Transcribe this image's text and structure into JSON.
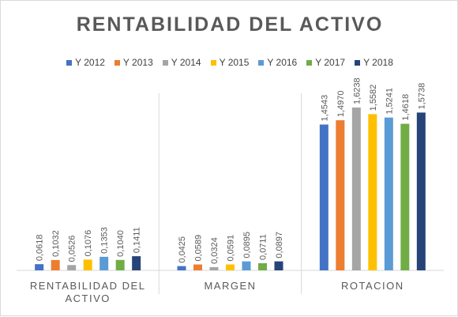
{
  "chart_data": {
    "type": "bar",
    "title": "RENTABILIDAD DEL ACTIVO",
    "categories": [
      "RENTABILIDAD DEL ACTIVO",
      "MARGEN",
      "ROTACION"
    ],
    "category_lines": [
      [
        "RENTABILIDAD DEL",
        "ACTIVO"
      ],
      [
        "MARGEN"
      ],
      [
        "ROTACION"
      ]
    ],
    "ylim": [
      0,
      1.9
    ],
    "grid": false,
    "legend_position": "top",
    "series": [
      {
        "name": "Y 2012",
        "color": "#4472c4",
        "values": [
          0.0618,
          0.0425,
          1.4543
        ],
        "labels": [
          "0,0618",
          "0,0425",
          "1,4543"
        ]
      },
      {
        "name": "Y 2013",
        "color": "#ed7d31",
        "values": [
          0.1032,
          0.0589,
          1.497
        ],
        "labels": [
          "0,1032",
          "0,0589",
          "1,4970"
        ]
      },
      {
        "name": "Y 2014",
        "color": "#a5a5a5",
        "values": [
          0.0526,
          0.0324,
          1.6238
        ],
        "labels": [
          "0,0526",
          "0,0324",
          "1,6238"
        ]
      },
      {
        "name": "Y 2015",
        "color": "#ffc000",
        "values": [
          0.1076,
          0.0591,
          1.5582
        ],
        "labels": [
          "0,1076",
          "0,0591",
          "1,5582"
        ]
      },
      {
        "name": "Y 2016",
        "color": "#5b9bd5",
        "values": [
          0.1353,
          0.0895,
          1.5241
        ],
        "labels": [
          "0,1353",
          "0,0895",
          "1,5241"
        ]
      },
      {
        "name": "Y 2017",
        "color": "#70ad47",
        "values": [
          0.104,
          0.0711,
          1.4618
        ],
        "labels": [
          "0,1040",
          "0,0711",
          "1,4618"
        ]
      },
      {
        "name": "Y 2018",
        "color": "#264478",
        "values": [
          0.1411,
          0.0897,
          1.5738
        ],
        "labels": [
          "0,1411",
          "0,0897",
          "1,5738"
        ]
      }
    ]
  }
}
